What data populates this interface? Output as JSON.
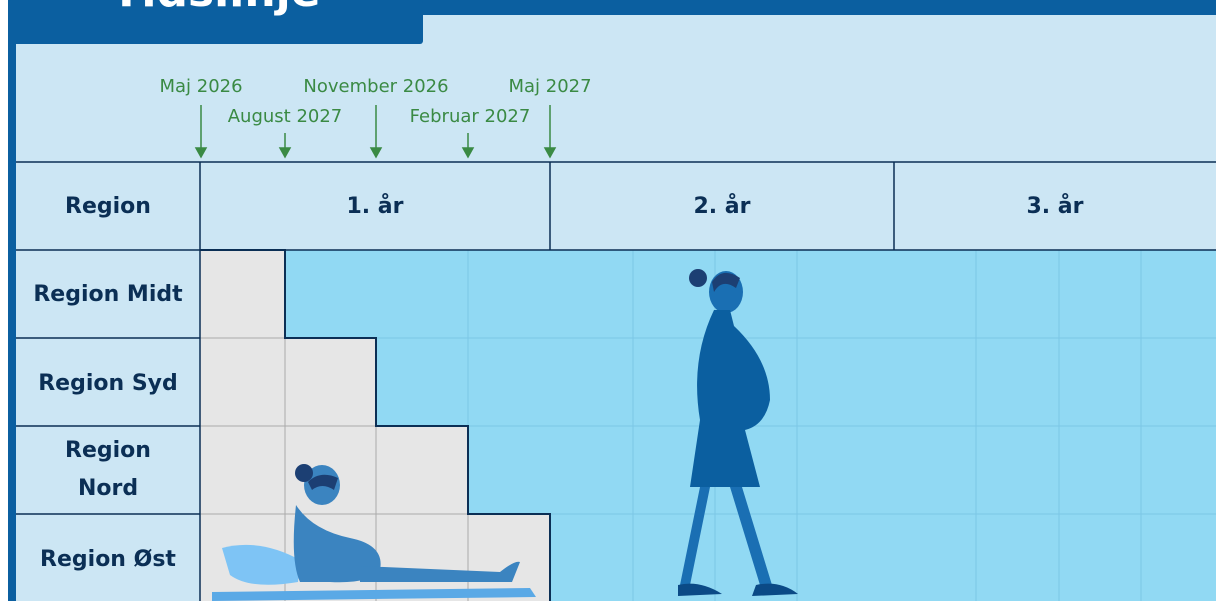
{
  "header": {
    "title": "Tidslinje"
  },
  "milestones": [
    "Maj 2026",
    "August 2027",
    "November 2026",
    "Februar 2027",
    "Maj 2027"
  ],
  "table": {
    "header": [
      "Region",
      "1. år",
      "2. år",
      "3. år"
    ],
    "rows": [
      "Region Midt",
      "Region Syd",
      "Region Nord",
      "Region Øst"
    ]
  }
}
